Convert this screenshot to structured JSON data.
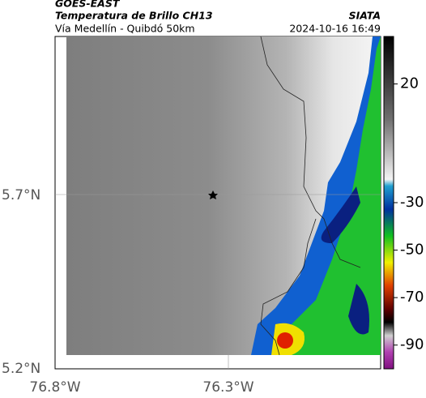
{
  "header": {
    "title": "GOES-EAST",
    "subtitle": "Temperatura de Brillo CH13",
    "location": "Vía Medellín - Quibdó 50km",
    "source": "SIATA",
    "timestamp": "2024-10-16 16:49"
  },
  "map": {
    "lat_labels": [
      "5.7°N",
      "5.2°N"
    ],
    "lon_labels": [
      "76.8°W",
      "76.3°W"
    ]
  },
  "colorbar": {
    "lim": [
      -100,
      40
    ],
    "ticks": [
      20,
      -30,
      -50,
      -70,
      -90
    ]
  }
}
